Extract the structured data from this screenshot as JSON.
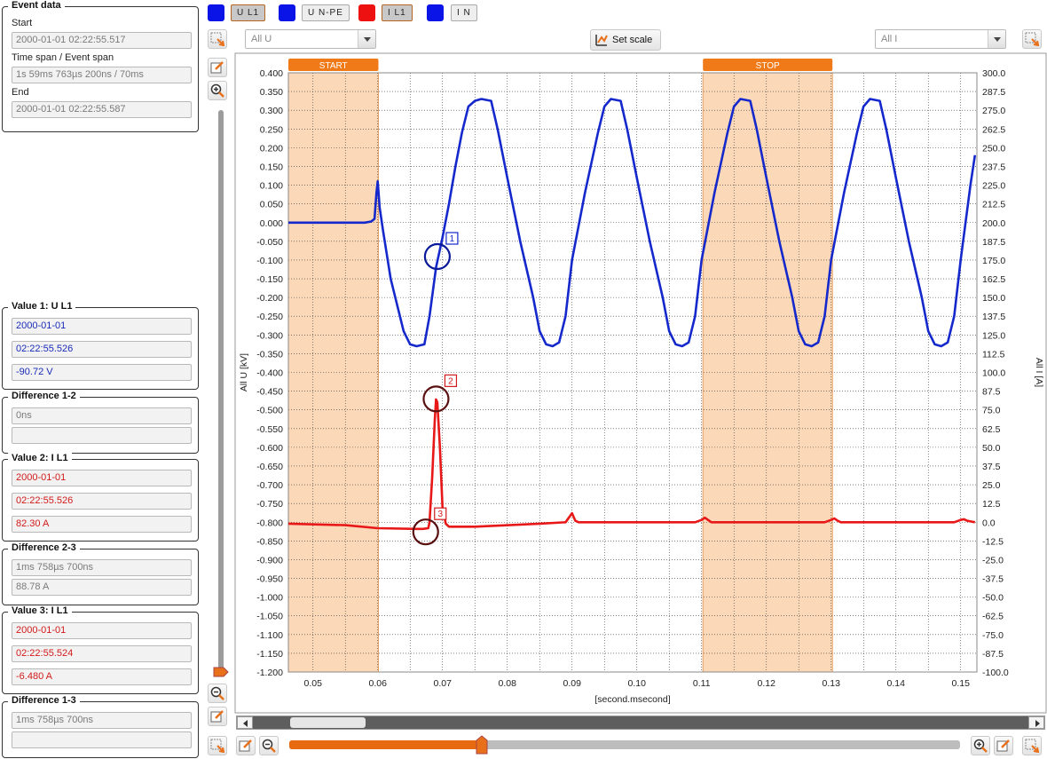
{
  "event_data": {
    "title": "Event data",
    "start_label": "Start",
    "start_value": "2000-01-01 02:22:55.517",
    "span_label": "Time span / Event span",
    "span_value": "1s 59ms 763µs 200ns / 70ms",
    "end_label": "End",
    "end_value": "2000-01-01 02:22:55.587"
  },
  "value1": {
    "title": "Value 1: U L1",
    "date": "2000-01-01",
    "time": "02:22:55.526",
    "value": "-90.72 V"
  },
  "diff12": {
    "title": "Difference 1-2",
    "time": "0ns",
    "value": ""
  },
  "value2": {
    "title": "Value 2: I L1",
    "date": "2000-01-01",
    "time": "02:22:55.526",
    "value": "82.30 A"
  },
  "diff23": {
    "title": "Difference 2-3",
    "time": "1ms 758µs 700ns",
    "value": "88.78 A"
  },
  "value3": {
    "title": "Value 3: I L1",
    "date": "2000-01-01",
    "time": "02:22:55.524",
    "value": "-6.480 A"
  },
  "diff13": {
    "title": "Difference 1-3",
    "time": "1ms 758µs 700ns",
    "value": ""
  },
  "legend": [
    {
      "label": "U L1",
      "color": "#0a14e6",
      "active": true
    },
    {
      "label": "U N-PE",
      "color": "#0a14e6",
      "active": false
    },
    {
      "label": "I L1",
      "color": "#ee1111",
      "active": true
    },
    {
      "label": "I N",
      "color": "#0a14e6",
      "active": false
    }
  ],
  "toolbar": {
    "left_select": "All U",
    "right_select": "All I",
    "set_scale_label": "Set scale"
  },
  "colors": {
    "voltage": "#1428cc",
    "current": "#e81818",
    "band": "#fbd9b8",
    "band_header": "#f07a18",
    "marker": "#5a1010"
  },
  "chart_data": {
    "type": "line",
    "xlabel": "[second.msecond]",
    "ylabel_left": "All U [kV]",
    "ylabel_right": "All I [A]",
    "xlim": [
      0.0462,
      0.1525
    ],
    "ylim_left": [
      -1.2,
      0.4
    ],
    "ylim_right": [
      -100,
      300
    ],
    "x_ticks": [
      "0.05",
      "0.06",
      "0.07",
      "0.08",
      "0.09",
      "0.10",
      "0.11",
      "0.12",
      "0.13",
      "0.14",
      "0.15"
    ],
    "y_ticks_left": [
      "0.400",
      "0.350",
      "0.300",
      "0.250",
      "0.200",
      "0.150",
      "0.100",
      "0.050",
      "0.000",
      "-0.050",
      "-0.100",
      "-0.150",
      "-0.200",
      "-0.250",
      "-0.300",
      "-0.350",
      "-0.400",
      "-0.450",
      "-0.500",
      "-0.550",
      "-0.600",
      "-0.650",
      "-0.700",
      "-0.750",
      "-0.800",
      "-0.850",
      "-0.900",
      "-0.950",
      "-1.000",
      "-1.050",
      "-1.100",
      "-1.150",
      "-1.200"
    ],
    "y_ticks_right": [
      "300.0",
      "287.5",
      "275.0",
      "262.5",
      "250.0",
      "237.5",
      "225.0",
      "212.5",
      "200.0",
      "187.5",
      "175.0",
      "162.5",
      "150.0",
      "137.5",
      "125.0",
      "112.5",
      "100.0",
      "87.5",
      "75.0",
      "62.5",
      "50.0",
      "37.5",
      "25.0",
      "12.5",
      "0.0",
      "-12.5",
      "-25.0",
      "-37.5",
      "-50.0",
      "-62.5",
      "-75.0",
      "-87.5",
      "-100.0"
    ],
    "bands": [
      {
        "label": "START",
        "x0": 0.0462,
        "x1": 0.0601
      },
      {
        "label": "STOP",
        "x0": 0.1102,
        "x1": 0.1302
      }
    ],
    "series": [
      {
        "name": "U L1",
        "axis": "left",
        "points": [
          [
            0.0462,
            0.0
          ],
          [
            0.055,
            0.0
          ],
          [
            0.058,
            0.0
          ],
          [
            0.059,
            0.003
          ],
          [
            0.0595,
            0.01
          ],
          [
            0.0598,
            0.08
          ],
          [
            0.06,
            0.11
          ],
          [
            0.0603,
            0.04
          ],
          [
            0.0608,
            -0.02
          ],
          [
            0.062,
            -0.15
          ],
          [
            0.064,
            -0.29
          ],
          [
            0.065,
            -0.325
          ],
          [
            0.066,
            -0.33
          ],
          [
            0.0672,
            -0.325
          ],
          [
            0.068,
            -0.25
          ],
          [
            0.069,
            -0.12
          ],
          [
            0.07,
            -0.04
          ],
          [
            0.071,
            0.05
          ],
          [
            0.072,
            0.15
          ],
          [
            0.073,
            0.24
          ],
          [
            0.074,
            0.31
          ],
          [
            0.075,
            0.325
          ],
          [
            0.076,
            0.33
          ],
          [
            0.0775,
            0.325
          ],
          [
            0.0785,
            0.25
          ],
          [
            0.08,
            0.12
          ],
          [
            0.082,
            -0.05
          ],
          [
            0.084,
            -0.2
          ],
          [
            0.085,
            -0.29
          ],
          [
            0.086,
            -0.325
          ],
          [
            0.087,
            -0.33
          ],
          [
            0.088,
            -0.32
          ],
          [
            0.089,
            -0.25
          ],
          [
            0.09,
            -0.1
          ],
          [
            0.092,
            0.08
          ],
          [
            0.094,
            0.24
          ],
          [
            0.095,
            0.31
          ],
          [
            0.096,
            0.33
          ],
          [
            0.0975,
            0.325
          ],
          [
            0.0985,
            0.25
          ],
          [
            0.1,
            0.12
          ],
          [
            0.102,
            -0.05
          ],
          [
            0.104,
            -0.2
          ],
          [
            0.105,
            -0.29
          ],
          [
            0.106,
            -0.325
          ],
          [
            0.107,
            -0.33
          ],
          [
            0.108,
            -0.32
          ],
          [
            0.109,
            -0.25
          ],
          [
            0.11,
            -0.1
          ],
          [
            0.112,
            0.08
          ],
          [
            0.114,
            0.24
          ],
          [
            0.115,
            0.31
          ],
          [
            0.116,
            0.33
          ],
          [
            0.1175,
            0.325
          ],
          [
            0.1185,
            0.25
          ],
          [
            0.12,
            0.12
          ],
          [
            0.122,
            -0.05
          ],
          [
            0.124,
            -0.2
          ],
          [
            0.125,
            -0.29
          ],
          [
            0.126,
            -0.325
          ],
          [
            0.127,
            -0.33
          ],
          [
            0.128,
            -0.32
          ],
          [
            0.129,
            -0.25
          ],
          [
            0.13,
            -0.1
          ],
          [
            0.132,
            0.08
          ],
          [
            0.134,
            0.24
          ],
          [
            0.135,
            0.31
          ],
          [
            0.136,
            0.33
          ],
          [
            0.1375,
            0.325
          ],
          [
            0.1385,
            0.25
          ],
          [
            0.14,
            0.12
          ],
          [
            0.142,
            -0.05
          ],
          [
            0.144,
            -0.2
          ],
          [
            0.145,
            -0.29
          ],
          [
            0.146,
            -0.325
          ],
          [
            0.147,
            -0.33
          ],
          [
            0.148,
            -0.32
          ],
          [
            0.149,
            -0.25
          ],
          [
            0.15,
            -0.1
          ],
          [
            0.1515,
            0.1
          ],
          [
            0.1522,
            0.18
          ]
        ]
      },
      {
        "name": "I L1",
        "axis": "right",
        "points": [
          [
            0.0462,
            -1.0
          ],
          [
            0.055,
            -2.0
          ],
          [
            0.06,
            -4.0
          ],
          [
            0.066,
            -4.5
          ],
          [
            0.067,
            -4.5
          ],
          [
            0.0678,
            -4.0
          ],
          [
            0.068,
            0.0
          ],
          [
            0.0684,
            30.0
          ],
          [
            0.0688,
            68.0
          ],
          [
            0.069,
            82.0
          ],
          [
            0.0692,
            80.0
          ],
          [
            0.0696,
            50.0
          ],
          [
            0.07,
            10.0
          ],
          [
            0.0705,
            -1.0
          ],
          [
            0.071,
            -3.0
          ],
          [
            0.075,
            -3.0
          ],
          [
            0.085,
            -1.0
          ],
          [
            0.089,
            0.0
          ],
          [
            0.0895,
            3.0
          ],
          [
            0.09,
            6.0
          ],
          [
            0.0905,
            1.0
          ],
          [
            0.091,
            0.0
          ],
          [
            0.109,
            0.0
          ],
          [
            0.11,
            1.5
          ],
          [
            0.1105,
            3.0
          ],
          [
            0.111,
            1.5
          ],
          [
            0.1115,
            0.0
          ],
          [
            0.129,
            0.0
          ],
          [
            0.13,
            1.5
          ],
          [
            0.1305,
            2.5
          ],
          [
            0.131,
            1.0
          ],
          [
            0.1315,
            0.0
          ],
          [
            0.149,
            0.0
          ],
          [
            0.15,
            1.5
          ],
          [
            0.1505,
            2.0
          ],
          [
            0.151,
            1.0
          ],
          [
            0.1522,
            0.0
          ]
        ]
      }
    ],
    "markers": [
      {
        "label": "1",
        "axis": "left",
        "x": 0.0692,
        "y": -0.0907
      },
      {
        "label": "2",
        "axis": "right",
        "x": 0.069,
        "y": 82.3
      },
      {
        "label": "3",
        "axis": "right",
        "x": 0.0674,
        "y": -6.48
      }
    ]
  }
}
